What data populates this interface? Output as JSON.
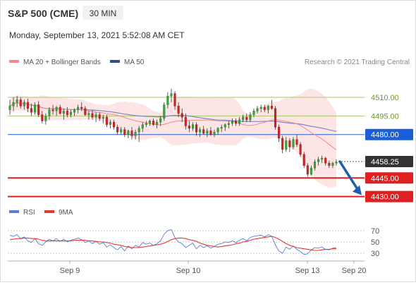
{
  "header": {
    "symbol": "S&P 500 (CME)",
    "timeframe": "30 MIN",
    "datetime": "Monday, September 13, 2021 5:52:08 AM CET"
  },
  "legend": {
    "ma20_label": "MA 20 + Bollinger Bands",
    "ma50_label": "MA 50",
    "copyright": "Research © 2021 Trading Central",
    "ma20_color": "#f08a8a",
    "ma50_color": "#2f4f8f",
    "band_color": "#fde0e0"
  },
  "rsi_legend": {
    "rsi_label": "RSI",
    "ma9_label": "9MA",
    "rsi_color": "#5b7fd6",
    "ma9_color": "#e53935"
  },
  "chart_data": [
    {
      "type": "candlestick",
      "title": "",
      "x_ticks": [
        "Sep 9",
        "Sep 10",
        "Sep 13",
        "Sep 20"
      ],
      "ylim": [
        4423,
        4531
      ],
      "levels": [
        {
          "value": 4510.0,
          "label": "4510.00",
          "kind": "resistance",
          "color": "#a4c96b"
        },
        {
          "value": 4495.0,
          "label": "4495.00",
          "kind": "resistance",
          "color": "#a4c96b"
        },
        {
          "value": 4480.0,
          "label": "4480.00",
          "kind": "pivot",
          "color": "#1a5fd8"
        },
        {
          "value": 4445.0,
          "label": "4445.00",
          "kind": "support",
          "color": "#e02020"
        },
        {
          "value": 4430.0,
          "label": "4430.00",
          "kind": "support",
          "color": "#e02020"
        }
      ],
      "last_price": {
        "value": 4458.25,
        "label": "4458.25",
        "color": "#333333"
      },
      "arrow": {
        "from": 4458.25,
        "to": 4430.0,
        "direction": "down",
        "color": "#1f5fa8"
      },
      "candles": [
        [
          4500,
          4508,
          4496,
          4503
        ],
        [
          4503,
          4510,
          4499,
          4506
        ],
        [
          4506,
          4511,
          4502,
          4508
        ],
        [
          4508,
          4510,
          4501,
          4503
        ],
        [
          4503,
          4508,
          4500,
          4506
        ],
        [
          4506,
          4509,
          4498,
          4501
        ],
        [
          4501,
          4505,
          4495,
          4498
        ],
        [
          4498,
          4506,
          4496,
          4504
        ],
        [
          4504,
          4507,
          4494,
          4496
        ],
        [
          4496,
          4499,
          4489,
          4491
        ],
        [
          4491,
          4497,
          4488,
          4495
        ],
        [
          4495,
          4502,
          4492,
          4500
        ],
        [
          4500,
          4504,
          4496,
          4499
        ],
        [
          4499,
          4503,
          4495,
          4502
        ],
        [
          4502,
          4504,
          4496,
          4497
        ],
        [
          4497,
          4501,
          4492,
          4499
        ],
        [
          4499,
          4502,
          4494,
          4496
        ],
        [
          4496,
          4500,
          4494,
          4498
        ],
        [
          4498,
          4501,
          4495,
          4500
        ],
        [
          4500,
          4504,
          4497,
          4502
        ],
        [
          4502,
          4506,
          4499,
          4501
        ],
        [
          4501,
          4503,
          4495,
          4496
        ],
        [
          4496,
          4499,
          4492,
          4497
        ],
        [
          4497,
          4500,
          4492,
          4494
        ],
        [
          4494,
          4498,
          4490,
          4496
        ],
        [
          4496,
          4498,
          4491,
          4493
        ],
        [
          4493,
          4496,
          4489,
          4494
        ],
        [
          4494,
          4496,
          4486,
          4488
        ],
        [
          4488,
          4492,
          4485,
          4490
        ],
        [
          4490,
          4492,
          4484,
          4486
        ],
        [
          4486,
          4488,
          4480,
          4482
        ],
        [
          4482,
          4486,
          4480,
          4484
        ],
        [
          4484,
          4486,
          4478,
          4480
        ],
        [
          4480,
          4484,
          4477,
          4483
        ],
        [
          4483,
          4486,
          4476,
          4479
        ],
        [
          4479,
          4484,
          4476,
          4482
        ],
        [
          4482,
          4487,
          4474,
          4485
        ],
        [
          4485,
          4490,
          4482,
          4488
        ],
        [
          4488,
          4491,
          4486,
          4489
        ],
        [
          4489,
          4492,
          4487,
          4491
        ],
        [
          4491,
          4493,
          4487,
          4488
        ],
        [
          4488,
          4492,
          4485,
          4490
        ],
        [
          4490,
          4495,
          4487,
          4493
        ],
        [
          4493,
          4506,
          4491,
          4504
        ],
        [
          4504,
          4514,
          4501,
          4511
        ],
        [
          4511,
          4517,
          4506,
          4513
        ],
        [
          4513,
          4515,
          4500,
          4503
        ],
        [
          4503,
          4506,
          4494,
          4497
        ],
        [
          4497,
          4501,
          4490,
          4494
        ],
        [
          4494,
          4497,
          4484,
          4487
        ],
        [
          4487,
          4491,
          4482,
          4485
        ],
        [
          4485,
          4490,
          4483,
          4488
        ],
        [
          4488,
          4490,
          4479,
          4482
        ],
        [
          4482,
          4486,
          4478,
          4484
        ],
        [
          4484,
          4487,
          4480,
          4481
        ],
        [
          4481,
          4485,
          4478,
          4483
        ],
        [
          4483,
          4486,
          4479,
          4480
        ],
        [
          4480,
          4484,
          4478,
          4482
        ],
        [
          4482,
          4486,
          4480,
          4485
        ],
        [
          4485,
          4488,
          4482,
          4486
        ],
        [
          4486,
          4489,
          4483,
          4488
        ],
        [
          4488,
          4491,
          4485,
          4489
        ],
        [
          4489,
          4493,
          4487,
          4491
        ],
        [
          4491,
          4493,
          4487,
          4489
        ],
        [
          4489,
          4494,
          4487,
          4492
        ],
        [
          4492,
          4496,
          4490,
          4494
        ],
        [
          4494,
          4497,
          4490,
          4492
        ],
        [
          4492,
          4498,
          4490,
          4496
        ],
        [
          4496,
          4501,
          4494,
          4499
        ],
        [
          4499,
          4503,
          4497,
          4501
        ],
        [
          4501,
          4504,
          4498,
          4502
        ],
        [
          4502,
          4504,
          4498,
          4500
        ],
        [
          4500,
          4504,
          4497,
          4503
        ],
        [
          4503,
          4508,
          4500,
          4501
        ],
        [
          4501,
          4503,
          4484,
          4486
        ],
        [
          4486,
          4488,
          4474,
          4477
        ],
        [
          4477,
          4479,
          4465,
          4468
        ],
        [
          4468,
          4478,
          4466,
          4475
        ],
        [
          4475,
          4477,
          4466,
          4470
        ],
        [
          4470,
          4478,
          4468,
          4476
        ],
        [
          4476,
          4480,
          4470,
          4472
        ],
        [
          4472,
          4474,
          4462,
          4464
        ],
        [
          4464,
          4466,
          4453,
          4455
        ],
        [
          4455,
          4457,
          4446,
          4448
        ],
        [
          4448,
          4455,
          4447,
          4453
        ],
        [
          4453,
          4460,
          4451,
          4458
        ],
        [
          4458,
          4462,
          4455,
          4460
        ],
        [
          4460,
          4463,
          4457,
          4461
        ],
        [
          4461,
          4462,
          4455,
          4457
        ],
        [
          4457,
          4459,
          4453,
          4455
        ],
        [
          4455,
          4458,
          4453,
          4457
        ],
        [
          4457,
          4460,
          4455,
          4458
        ]
      ]
    },
    {
      "type": "line",
      "title": "",
      "yticks": [
        30,
        50,
        70
      ],
      "ylim": [
        20,
        80
      ],
      "series": [
        {
          "name": "RSI",
          "values": [
            62,
            60,
            63,
            56,
            59,
            52,
            49,
            56,
            47,
            44,
            50,
            55,
            52,
            56,
            51,
            55,
            50,
            53,
            55,
            57,
            54,
            49,
            52,
            47,
            51,
            46,
            49,
            41,
            45,
            40,
            36,
            42,
            34,
            43,
            38,
            44,
            41,
            49,
            46,
            48,
            44,
            47,
            52,
            64,
            70,
            72,
            58,
            50,
            47,
            40,
            44,
            48,
            38,
            44,
            40,
            43,
            39,
            42,
            46,
            47,
            50,
            49,
            52,
            49,
            53,
            56,
            52,
            58,
            60,
            61,
            62,
            59,
            63,
            60,
            45,
            34,
            30,
            41,
            37,
            43,
            37,
            33,
            28,
            29,
            36,
            40,
            39,
            41,
            37,
            36,
            39,
            40
          ]
        },
        {
          "name": "9MA",
          "values": [
            54,
            55,
            56,
            56,
            57,
            57,
            56,
            56,
            55,
            53,
            52,
            52,
            52,
            52,
            52,
            52,
            52,
            52,
            53,
            53,
            53,
            53,
            52,
            52,
            51,
            50,
            50,
            49,
            48,
            46,
            45,
            44,
            42,
            41,
            40,
            40,
            40,
            41,
            42,
            43,
            44,
            45,
            46,
            48,
            51,
            54,
            56,
            57,
            57,
            56,
            54,
            53,
            51,
            48,
            46,
            44,
            43,
            42,
            41,
            42,
            43,
            44,
            45,
            47,
            48,
            50,
            51,
            53,
            55,
            56,
            57,
            58,
            59,
            60,
            58,
            55,
            51,
            47,
            44,
            42,
            40,
            39,
            38,
            37,
            36,
            35,
            35,
            36,
            37,
            37,
            38,
            38
          ]
        }
      ]
    }
  ]
}
